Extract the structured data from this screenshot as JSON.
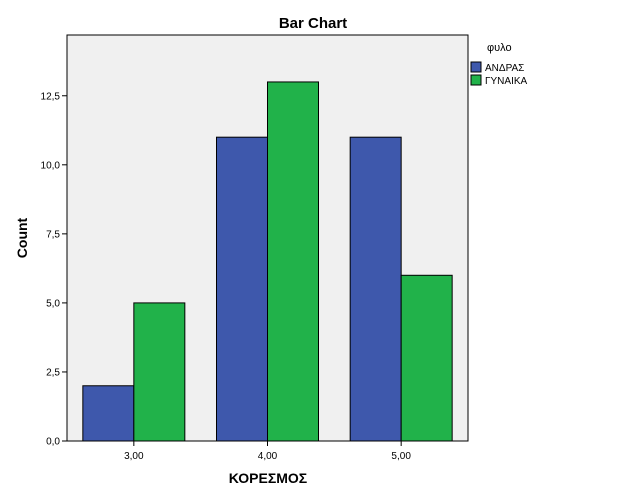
{
  "chart_data": {
    "type": "bar",
    "title": "Bar Chart",
    "xlabel": "ΚΟΡΕΣΜΟΣ",
    "ylabel": "Count",
    "categories": [
      "3,00",
      "4,00",
      "5,00"
    ],
    "series": [
      {
        "name": "ΑΝΔΡΑΣ",
        "values": [
          2,
          11,
          11
        ],
        "color": "#3e58ac"
      },
      {
        "name": "ΓΥΝΑΙΚΑ",
        "values": [
          5,
          13,
          6
        ],
        "color": "#21b24a"
      }
    ],
    "yticks": [
      {
        "value": 0,
        "label": "0,0"
      },
      {
        "value": 2.5,
        "label": "2,5"
      },
      {
        "value": 5,
        "label": "5,0"
      },
      {
        "value": 7.5,
        "label": "7,5"
      },
      {
        "value": 10,
        "label": "10,0"
      },
      {
        "value": 12.5,
        "label": "12,5"
      }
    ],
    "ylim": [
      0,
      14.7
    ],
    "grid": false,
    "plot_background": "#f0f0f0",
    "legend": {
      "title": "φυλο",
      "placement": "right"
    }
  }
}
